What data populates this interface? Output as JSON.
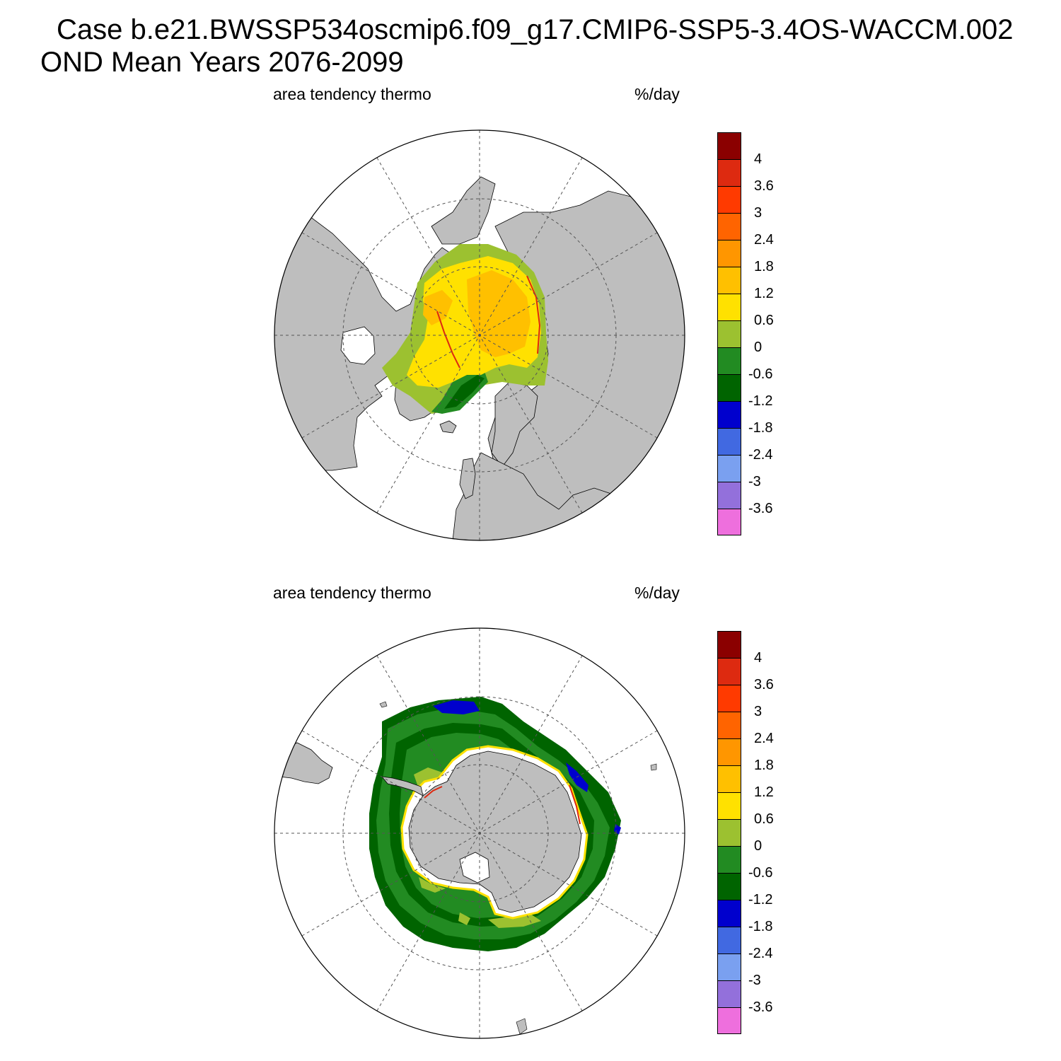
{
  "title": {
    "line1": "Case b.e21.BWSSP534oscmip6.f09_g17.CMIP6-SSP5-3.4OS-WACCM.002",
    "line2": "OND Mean   Years 2076-2099"
  },
  "colorbar": {
    "ticks": [
      "4",
      "3.6",
      "3",
      "2.4",
      "1.8",
      "1.2",
      "0.6",
      "0",
      "-0.6",
      "-1.2",
      "-1.8",
      "-2.4",
      "-3",
      "-3.6"
    ],
    "colors": [
      "#8b0000",
      "#dd2a10",
      "#ff3a00",
      "#ff6400",
      "#ff9600",
      "#ffc000",
      "#ffe100",
      "#9cc130",
      "#228b22",
      "#006400",
      "#0000cd",
      "#4169e1",
      "#7aa0f0",
      "#9370db",
      "#ee6fdd"
    ]
  },
  "colors": {
    "land": "#bebebe",
    "ocean": "#ffffff",
    "grid": "#555555"
  },
  "panels": [
    {
      "id": "arctic",
      "hemisphere": "north",
      "label_left": "area tendency thermo",
      "label_right": "%/day"
    },
    {
      "id": "antarctic",
      "hemisphere": "south",
      "label_left": "area tendency thermo",
      "label_right": "%/day"
    }
  ]
}
